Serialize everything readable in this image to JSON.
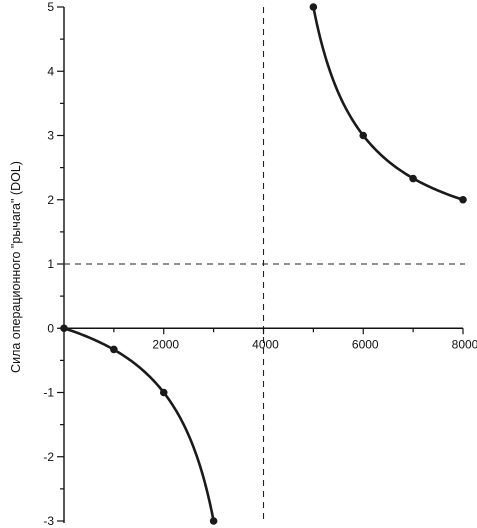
{
  "chart_data": {
    "type": "line",
    "title": "",
    "xlabel": "",
    "ylabel": "Сила операционного \"рычага\" (DOL)",
    "xlim": [
      0,
      8000
    ],
    "ylim": [
      -3,
      5
    ],
    "x_ticks": [
      2000,
      4000,
      6000,
      8000
    ],
    "x_tick_labels": [
      "2000",
      "4000",
      "6000",
      "8000"
    ],
    "y_ticks": [
      5,
      4,
      3,
      2,
      1,
      0,
      -1,
      -2,
      -3
    ],
    "y_tick_labels": [
      "5",
      "4",
      "3",
      "2",
      "1",
      "0",
      "-1",
      "-2",
      "-3"
    ],
    "grid": false,
    "reference_lines": [
      {
        "orientation": "vertical",
        "value": 4000,
        "style": "dashed"
      },
      {
        "orientation": "horizontal",
        "value": 1,
        "style": "dashed"
      }
    ],
    "series": [
      {
        "x": [
          0,
          1000,
          2000,
          3000
        ],
        "y": [
          0,
          -0.33,
          -1,
          -3
        ]
      },
      {
        "x": [
          5000,
          6000,
          7000,
          8000
        ],
        "y": [
          5,
          3,
          2.33,
          2
        ]
      }
    ]
  }
}
